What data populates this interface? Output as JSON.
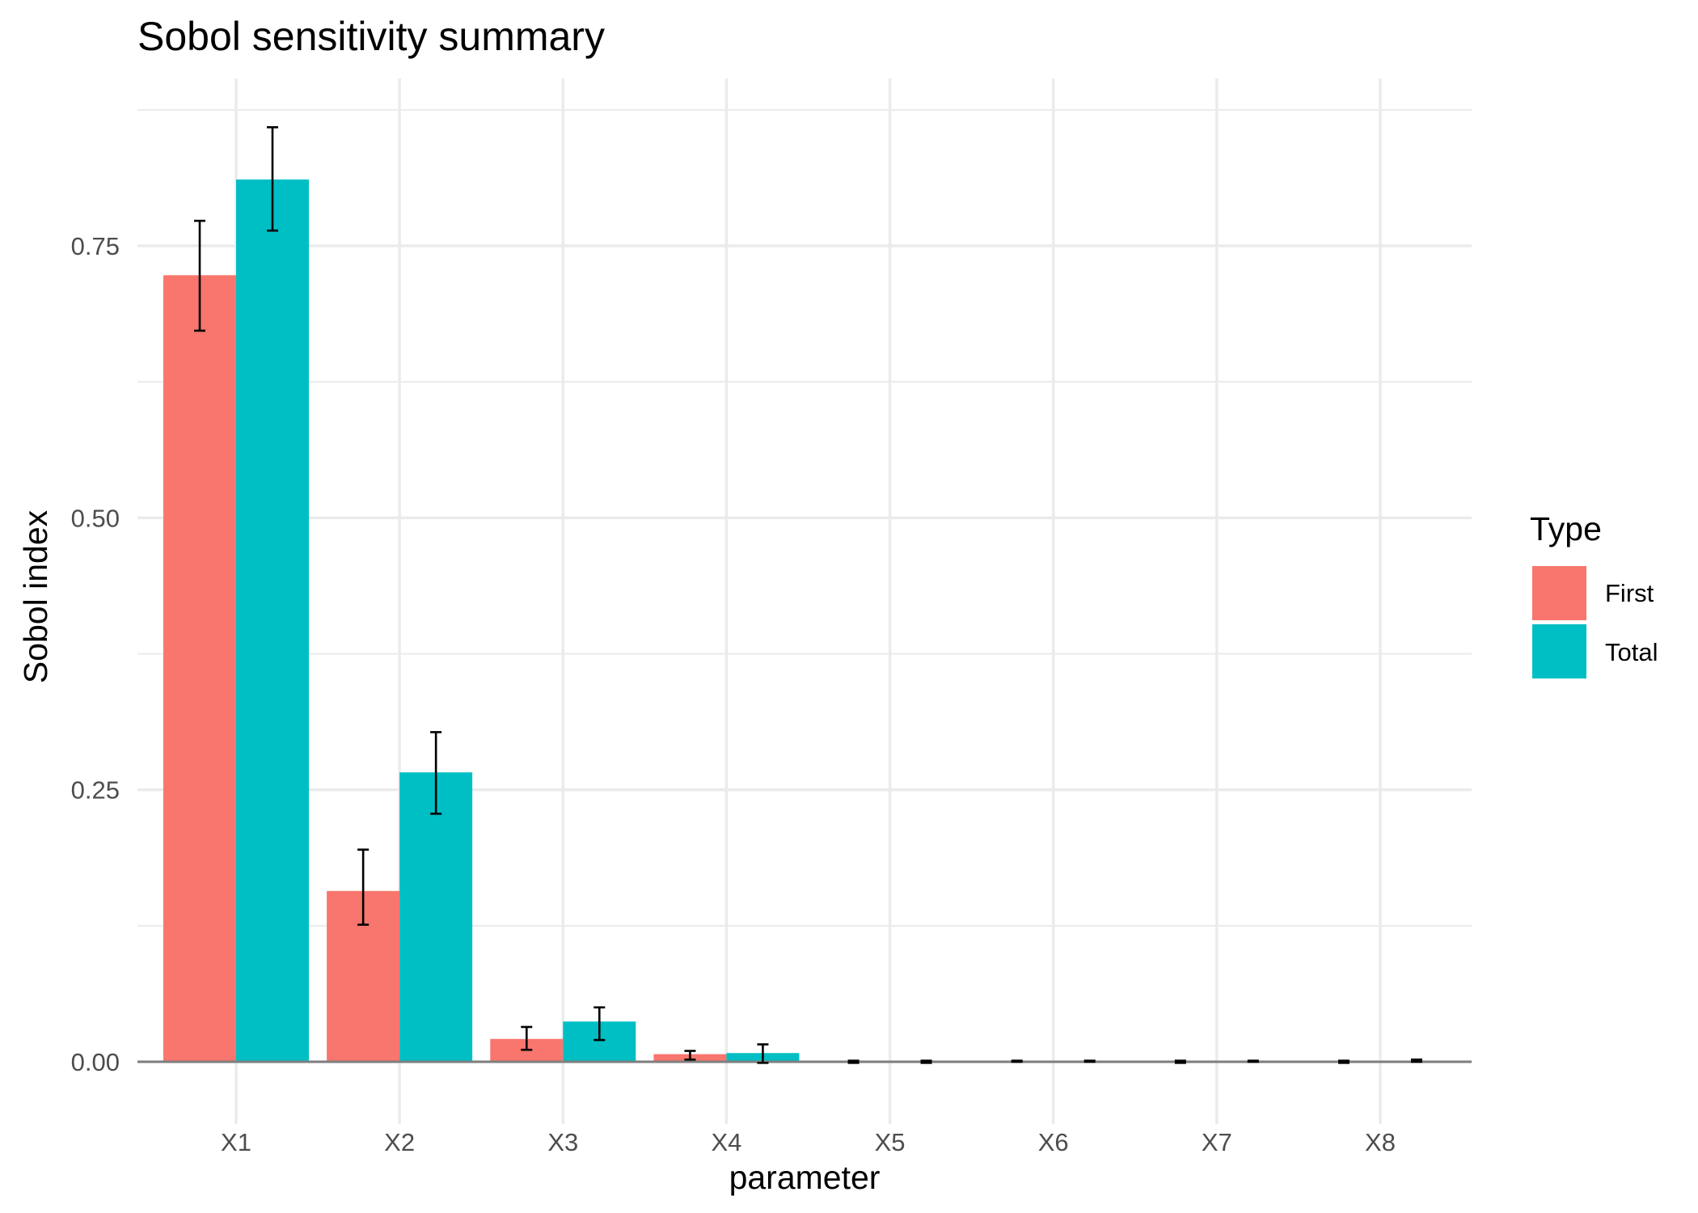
{
  "chart_data": {
    "type": "bar",
    "title": "Sobol sensitivity summary",
    "xlabel": "parameter",
    "ylabel": "Sobol index",
    "categories": [
      "X1",
      "X2",
      "X3",
      "X4",
      "X5",
      "X6",
      "X7",
      "X8"
    ],
    "series": [
      {
        "name": "First",
        "color": "#F8766D",
        "values": [
          0.723,
          0.157,
          0.021,
          0.007,
          0.0,
          0.0,
          0.0,
          0.0
        ],
        "error_low": [
          0.672,
          0.126,
          0.011,
          0.002,
          -0.001,
          0.0,
          -0.001,
          -0.001
        ],
        "error_high": [
          0.773,
          0.195,
          0.032,
          0.01,
          0.001,
          0.001,
          0.001,
          0.001
        ]
      },
      {
        "name": "Total",
        "color": "#00BFC4",
        "values": [
          0.811,
          0.266,
          0.037,
          0.008,
          0.0,
          0.001,
          0.0,
          0.001
        ],
        "error_low": [
          0.764,
          0.228,
          0.02,
          -0.001,
          -0.001,
          0.0,
          0.0,
          0.0
        ],
        "error_high": [
          0.859,
          0.303,
          0.05,
          0.016,
          0.001,
          0.001,
          0.001,
          0.002
        ]
      }
    ],
    "y_ticks": [
      0.0,
      0.25,
      0.5,
      0.75
    ],
    "y_tick_labels": [
      "0.00",
      "0.25",
      "0.50",
      "0.75"
    ],
    "ylim": [
      -0.044,
      0.876
    ],
    "grid": true,
    "legend": {
      "title": "Type",
      "position": "right"
    }
  }
}
